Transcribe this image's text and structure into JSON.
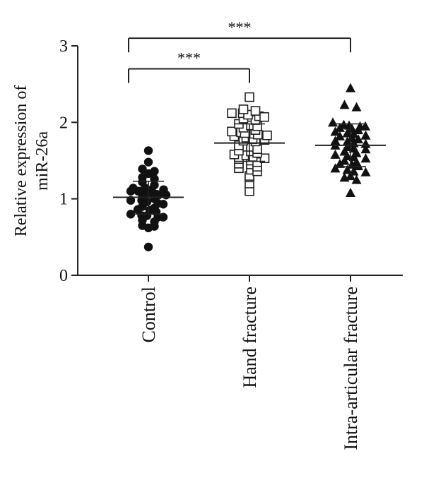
{
  "chart_data": {
    "type": "scatter",
    "ylabel_lines": [
      "Relative expression of",
      "miR-26a"
    ],
    "ylim": [
      0,
      3
    ],
    "yticks": [
      "0",
      "1",
      "2",
      "3"
    ],
    "categories": [
      "Control",
      "Hand fracture",
      "Intra-articular fracture"
    ],
    "grid": false,
    "series": [
      {
        "category": "Control",
        "marker": "filled-circle",
        "mean": 1.02,
        "sd_upper": 1.23,
        "sd_lower": 0.8,
        "values": [
          1.63,
          1.48,
          1.39,
          1.36,
          1.33,
          1.28,
          1.26,
          1.22,
          1.18,
          1.14,
          1.14,
          1.12,
          1.12,
          1.1,
          1.1,
          1.1,
          1.08,
          1.08,
          1.06,
          1.05,
          1.05,
          1.02,
          1.0,
          0.98,
          0.98,
          0.96,
          0.94,
          0.93,
          0.9,
          0.88,
          0.86,
          0.85,
          0.83,
          0.8,
          0.78,
          0.78,
          0.76,
          0.76,
          0.72,
          0.7,
          0.65,
          0.64,
          0.62,
          0.37
        ]
      },
      {
        "category": "Hand fracture",
        "marker": "open-square",
        "mean": 1.73,
        "sd_upper": 1.98,
        "sd_lower": 1.49,
        "values": [
          2.33,
          2.17,
          2.15,
          2.12,
          2.12,
          2.1,
          2.08,
          2.07,
          2.05,
          2.03,
          1.98,
          1.96,
          1.95,
          1.93,
          1.9,
          1.88,
          1.87,
          1.86,
          1.85,
          1.84,
          1.83,
          1.82,
          1.8,
          1.78,
          1.77,
          1.76,
          1.75,
          1.7,
          1.68,
          1.65,
          1.63,
          1.62,
          1.6,
          1.58,
          1.57,
          1.55,
          1.53,
          1.52,
          1.5,
          1.48,
          1.46,
          1.45,
          1.42,
          1.4,
          1.38,
          1.36,
          1.3,
          1.28,
          1.2,
          1.1
        ]
      },
      {
        "category": "Intra-articular fracture",
        "marker": "filled-triangle",
        "mean": 1.7,
        "sd_upper": 1.98,
        "sd_lower": 1.42,
        "values": [
          2.45,
          2.23,
          2.2,
          2.0,
          1.97,
          1.96,
          1.95,
          1.95,
          1.93,
          1.92,
          1.9,
          1.88,
          1.86,
          1.85,
          1.83,
          1.82,
          1.8,
          1.78,
          1.76,
          1.75,
          1.73,
          1.72,
          1.7,
          1.68,
          1.66,
          1.65,
          1.62,
          1.6,
          1.58,
          1.56,
          1.55,
          1.53,
          1.5,
          1.48,
          1.46,
          1.45,
          1.43,
          1.4,
          1.38,
          1.36,
          1.35,
          1.3,
          1.28,
          1.25,
          1.08
        ]
      }
    ],
    "significance": [
      {
        "from": "Control",
        "to": "Hand fracture",
        "label": "***",
        "y": 2.7
      },
      {
        "from": "Control",
        "to": "Intra-articular fracture",
        "label": "***",
        "y": 3.1
      }
    ]
  }
}
